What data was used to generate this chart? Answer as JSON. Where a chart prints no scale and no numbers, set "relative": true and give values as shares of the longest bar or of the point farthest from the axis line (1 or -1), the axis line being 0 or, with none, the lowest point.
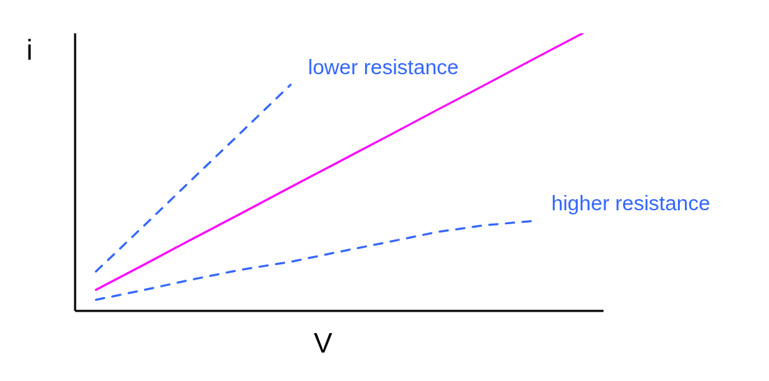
{
  "chart_data": {
    "type": "line",
    "relative": true,
    "xlabel": "V",
    "ylabel": "i",
    "marker": "none",
    "categories": [
      null,
      null,
      null,
      null,
      null,
      null,
      null,
      null,
      null,
      null,
      null
    ],
    "series": [
      {
        "name": "lower resistance",
        "color": "#3366ff",
        "line_style": "dashed",
        "values": [
          0.142,
          0.309,
          0.478,
          0.646,
          0.815,
          null,
          null,
          null,
          null,
          null,
          null
        ]
      },
      {
        "color": "#ff00ff",
        "line_style": "solid",
        "values": [
          0.076,
          0.168,
          0.261,
          0.353,
          0.446,
          0.538,
          0.63,
          0.723,
          0.815,
          0.908,
          1
        ]
      },
      {
        "name": "higher resistance",
        "color": "#3366ff",
        "line_style": "dashed",
        "values": [
          0.04,
          0.076,
          0.114,
          0.149,
          0.177,
          0.213,
          0.248,
          0.284,
          0.309,
          0.324,
          null
        ]
      }
    ]
  }
}
